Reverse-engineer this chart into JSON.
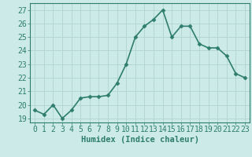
{
  "x": [
    0,
    1,
    2,
    3,
    4,
    5,
    6,
    7,
    8,
    9,
    10,
    11,
    12,
    13,
    14,
    15,
    16,
    17,
    18,
    19,
    20,
    21,
    22,
    23
  ],
  "y": [
    19.6,
    19.3,
    20.0,
    19.0,
    19.6,
    20.5,
    20.6,
    20.6,
    20.7,
    21.6,
    23.0,
    25.0,
    25.8,
    26.3,
    27.0,
    25.0,
    25.8,
    25.8,
    24.5,
    24.2,
    24.2,
    23.6,
    22.3,
    22.0
  ],
  "line_color": "#2e7d6e",
  "marker": "D",
  "marker_size": 2.5,
  "bg_color": "#cceae7",
  "grid_color": "#b0d4d0",
  "xlabel": "Humidex (Indice chaleur)",
  "ylabel_ticks": [
    19,
    20,
    21,
    22,
    23,
    24,
    25,
    26,
    27
  ],
  "xlim": [
    -0.5,
    23.5
  ],
  "ylim": [
    18.7,
    27.5
  ],
  "xlabel_fontsize": 7.5,
  "tick_fontsize": 7,
  "line_width": 1.2
}
